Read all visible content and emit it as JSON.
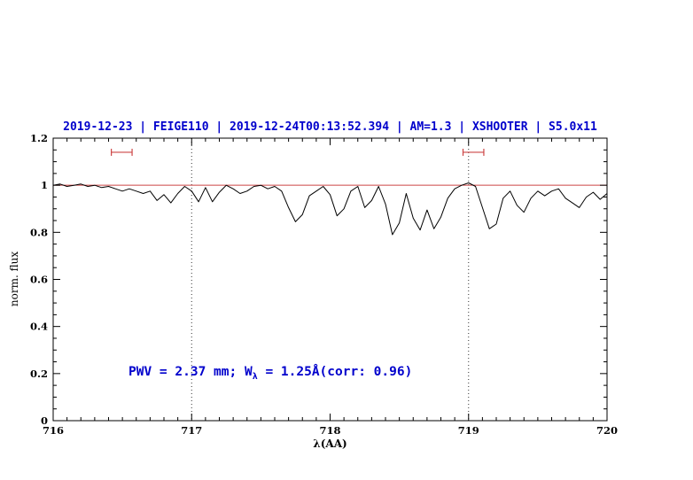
{
  "title": {
    "text": "2019-12-23 | FEIGE110 | 2019-12-24T00:13:52.394 | AM=1.3 | XSHOOTER | S5.0x11",
    "color": "#0000cc"
  },
  "annotation": {
    "prefix": "PWV = 2.37 mm; W",
    "sub": "λ",
    "suffix": " = 1.25Å(corr: 0.96)",
    "color": "#0000cc"
  },
  "chart_data": {
    "type": "line",
    "title": "2019-12-23 | FEIGE110 | 2019-12-24T00:13:52.394 | AM=1.3 | XSHOOTER | S5.0x11",
    "xlabel": "λ(AA)",
    "ylabel": "norm. flux",
    "xlim": [
      716,
      720
    ],
    "ylim": [
      0,
      1.2
    ],
    "xticks": [
      716,
      717,
      718,
      719,
      720
    ],
    "xtick_labels": [
      "716",
      "717",
      "718",
      "719",
      "720"
    ],
    "yticks": [
      0,
      0.2,
      0.4,
      0.6,
      0.8,
      1,
      1.2
    ],
    "ytick_labels": [
      "0",
      "0.2",
      "0.4",
      "0.6",
      "0.8",
      "1",
      "1.2"
    ],
    "x_minor_step": 0.1,
    "y_minor_step": 0.05,
    "grid": false,
    "legend": "none",
    "reference_line_y": 1.0,
    "dotted_vlines": [
      717,
      719
    ],
    "range_markers": [
      {
        "x1": 716.42,
        "x2": 716.57,
        "y": 1.14
      },
      {
        "x1": 718.96,
        "x2": 719.11,
        "y": 1.14
      }
    ],
    "colors": {
      "spectrum": "#000000",
      "reference": "#cc4444",
      "marker": "#cc4444",
      "dotted": "#333333",
      "axis": "#000000"
    },
    "series": [
      {
        "name": "normalized-spectrum",
        "color": "#000000",
        "points": [
          [
            716.0,
            1.0
          ],
          [
            716.05,
            1.005
          ],
          [
            716.1,
            0.995
          ],
          [
            716.15,
            1.0
          ],
          [
            716.2,
            1.005
          ],
          [
            716.25,
            0.995
          ],
          [
            716.3,
            1.0
          ],
          [
            716.35,
            0.99
          ],
          [
            716.4,
            0.995
          ],
          [
            716.45,
            0.985
          ],
          [
            716.5,
            0.975
          ],
          [
            716.55,
            0.985
          ],
          [
            716.6,
            0.975
          ],
          [
            716.65,
            0.965
          ],
          [
            716.7,
            0.975
          ],
          [
            716.75,
            0.935
          ],
          [
            716.8,
            0.96
          ],
          [
            716.85,
            0.925
          ],
          [
            716.9,
            0.965
          ],
          [
            716.95,
            0.995
          ],
          [
            717.0,
            0.975
          ],
          [
            717.05,
            0.93
          ],
          [
            717.1,
            0.99
          ],
          [
            717.15,
            0.93
          ],
          [
            717.2,
            0.97
          ],
          [
            717.25,
            1.0
          ],
          [
            717.3,
            0.985
          ],
          [
            717.35,
            0.965
          ],
          [
            717.4,
            0.975
          ],
          [
            717.45,
            0.995
          ],
          [
            717.5,
            1.0
          ],
          [
            717.55,
            0.985
          ],
          [
            717.6,
            0.995
          ],
          [
            717.65,
            0.975
          ],
          [
            717.7,
            0.905
          ],
          [
            717.75,
            0.845
          ],
          [
            717.8,
            0.875
          ],
          [
            717.85,
            0.955
          ],
          [
            717.9,
            0.975
          ],
          [
            717.95,
            0.995
          ],
          [
            718.0,
            0.96
          ],
          [
            718.05,
            0.87
          ],
          [
            718.1,
            0.9
          ],
          [
            718.15,
            0.975
          ],
          [
            718.2,
            0.995
          ],
          [
            718.25,
            0.905
          ],
          [
            718.3,
            0.935
          ],
          [
            718.35,
            0.995
          ],
          [
            718.4,
            0.92
          ],
          [
            718.45,
            0.79
          ],
          [
            718.5,
            0.84
          ],
          [
            718.55,
            0.965
          ],
          [
            718.6,
            0.86
          ],
          [
            718.65,
            0.81
          ],
          [
            718.7,
            0.895
          ],
          [
            718.75,
            0.815
          ],
          [
            718.8,
            0.865
          ],
          [
            718.85,
            0.945
          ],
          [
            718.9,
            0.985
          ],
          [
            718.95,
            1.0
          ],
          [
            719.0,
            1.01
          ],
          [
            719.05,
            0.995
          ],
          [
            719.1,
            0.905
          ],
          [
            719.15,
            0.815
          ],
          [
            719.2,
            0.835
          ],
          [
            719.25,
            0.945
          ],
          [
            719.3,
            0.975
          ],
          [
            719.35,
            0.915
          ],
          [
            719.4,
            0.885
          ],
          [
            719.45,
            0.945
          ],
          [
            719.5,
            0.975
          ],
          [
            719.55,
            0.955
          ],
          [
            719.6,
            0.975
          ],
          [
            719.65,
            0.985
          ],
          [
            719.7,
            0.945
          ],
          [
            719.75,
            0.925
          ],
          [
            719.8,
            0.905
          ],
          [
            719.85,
            0.95
          ],
          [
            719.9,
            0.97
          ],
          [
            719.95,
            0.94
          ],
          [
            720.0,
            0.965
          ]
        ]
      }
    ]
  }
}
